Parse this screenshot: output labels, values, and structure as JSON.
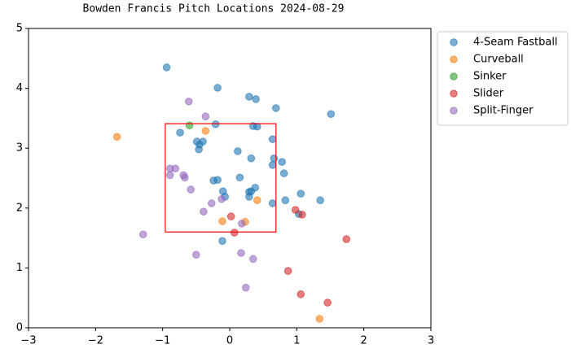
{
  "chart_data": {
    "type": "scatter",
    "title": "Bowden Francis Pitch Locations 2024-08-29",
    "xlim": [
      -3,
      3
    ],
    "ylim": [
      0,
      5
    ],
    "xticks": [
      {
        "value": -3,
        "label": "−3"
      },
      {
        "value": -2,
        "label": "−2"
      },
      {
        "value": -1,
        "label": "−1"
      },
      0,
      1,
      2,
      3
    ],
    "yticks": [
      0,
      1,
      2,
      3,
      4,
      5
    ],
    "grid": false,
    "legend": "outside upper right",
    "strike_zone": {
      "x": [
        -0.96,
        0.69
      ],
      "y": [
        1.6,
        3.41
      ],
      "color": "#ff0000"
    },
    "series": [
      {
        "name": "4-Seam Fastball",
        "color": "#1f77b4",
        "x": [
          -0.94,
          -0.18,
          0.29,
          0.39,
          0.69,
          1.51,
          -0.21,
          0.35,
          0.41,
          -0.74,
          -0.49,
          -0.4,
          -0.45,
          -0.46,
          0.64,
          0.12,
          0.32,
          0.66,
          0.78,
          0.64,
          0.81,
          0.15,
          -0.18,
          -0.24,
          0.38,
          0.32,
          0.29,
          -0.1,
          -0.07,
          0.29,
          1.06,
          0.83,
          1.35,
          0.64,
          1.03,
          -0.11
        ],
        "y": [
          4.35,
          4.01,
          3.86,
          3.82,
          3.67,
          3.57,
          3.4,
          3.37,
          3.36,
          3.26,
          3.11,
          3.11,
          3.06,
          2.98,
          3.15,
          2.95,
          2.83,
          2.83,
          2.77,
          2.72,
          2.58,
          2.51,
          2.47,
          2.46,
          2.34,
          2.28,
          2.27,
          2.28,
          2.19,
          2.19,
          2.24,
          2.13,
          2.13,
          2.08,
          1.9,
          1.45
        ]
      },
      {
        "name": "Curveball",
        "color": "#ff7f0e",
        "x": [
          -1.68,
          -0.36,
          0.41,
          -0.11,
          0.23,
          1.34
        ],
        "y": [
          3.19,
          3.29,
          2.13,
          1.78,
          1.77,
          0.15
        ]
      },
      {
        "name": "Sinker",
        "color": "#2ca02c",
        "x": [
          -0.6
        ],
        "y": [
          3.38
        ]
      },
      {
        "name": "Slider",
        "color": "#d62728",
        "x": [
          0.02,
          0.98,
          1.08,
          1.74,
          0.07,
          0.87,
          1.06,
          1.46
        ],
        "y": [
          1.86,
          1.97,
          1.89,
          1.48,
          1.59,
          0.95,
          0.56,
          0.42
        ]
      },
      {
        "name": "Split-Finger",
        "color": "#9467bd",
        "x": [
          -0.61,
          -0.36,
          -0.89,
          -0.81,
          -0.89,
          -0.69,
          -0.67,
          -0.58,
          -0.12,
          -0.27,
          -0.39,
          0.18,
          -1.29,
          -0.5,
          0.17,
          0.35,
          0.24
        ],
        "y": [
          3.78,
          3.53,
          2.66,
          2.66,
          2.55,
          2.55,
          2.51,
          2.31,
          2.15,
          2.08,
          1.94,
          1.74,
          1.56,
          1.22,
          1.25,
          1.15,
          0.67
        ]
      }
    ]
  }
}
